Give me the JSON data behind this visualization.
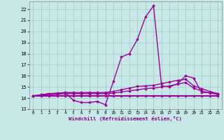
{
  "xlabel": "Windchill (Refroidissement éolien,°C)",
  "bg_color": "#c8e8e8",
  "grid_color": "#a0c8c8",
  "line_color": "#990099",
  "xlim": [
    -0.5,
    23.5
  ],
  "ylim": [
    13.0,
    22.7
  ],
  "yticks": [
    13,
    14,
    15,
    16,
    17,
    18,
    19,
    20,
    21,
    22
  ],
  "xticks": [
    0,
    1,
    2,
    3,
    4,
    5,
    6,
    7,
    8,
    9,
    10,
    11,
    12,
    13,
    14,
    15,
    16,
    17,
    18,
    19,
    20,
    21,
    22,
    23
  ],
  "xtick_labels": [
    "0",
    "1",
    "2",
    "3",
    "4",
    "5",
    "6",
    "7",
    "8",
    "9",
    "10",
    "11",
    "12",
    "13",
    "14",
    "15",
    "16",
    "17",
    "18",
    "19",
    "20",
    "21",
    "22",
    "23"
  ],
  "series": [
    {
      "x": [
        0,
        1,
        2,
        3,
        4,
        5,
        6,
        7,
        8,
        9,
        10,
        11,
        12,
        13,
        14,
        15,
        16,
        17,
        18,
        19,
        20,
        21,
        22,
        23
      ],
      "y": [
        14.2,
        14.3,
        14.4,
        14.4,
        14.5,
        13.8,
        13.6,
        13.6,
        13.7,
        13.4,
        15.5,
        17.7,
        18.0,
        19.3,
        21.3,
        22.3,
        15.1,
        15.0,
        15.3,
        16.0,
        15.8,
        14.5,
        14.5,
        14.4
      ]
    },
    {
      "x": [
        0,
        1,
        2,
        3,
        4,
        5,
        6,
        7,
        8,
        9,
        10,
        11,
        12,
        13,
        14,
        15,
        16,
        17,
        18,
        19,
        20,
        21,
        22,
        23
      ],
      "y": [
        14.2,
        14.3,
        14.4,
        14.45,
        14.5,
        14.5,
        14.5,
        14.5,
        14.5,
        14.5,
        14.6,
        14.75,
        14.9,
        15.05,
        15.1,
        15.15,
        15.3,
        15.45,
        15.6,
        15.7,
        15.1,
        14.85,
        14.6,
        14.4
      ]
    },
    {
      "x": [
        0,
        1,
        2,
        3,
        4,
        5,
        6,
        7,
        8,
        9,
        10,
        11,
        12,
        13,
        14,
        15,
        16,
        17,
        18,
        19,
        20,
        21,
        22,
        23
      ],
      "y": [
        14.2,
        14.25,
        14.3,
        14.35,
        14.4,
        14.4,
        14.4,
        14.4,
        14.4,
        14.4,
        14.45,
        14.55,
        14.65,
        14.75,
        14.85,
        14.9,
        15.0,
        15.1,
        15.25,
        15.4,
        14.9,
        14.65,
        14.45,
        14.35
      ]
    },
    {
      "x": [
        0,
        1,
        2,
        3,
        4,
        5,
        6,
        7,
        8,
        9,
        10,
        11,
        12,
        13,
        14,
        15,
        16,
        17,
        18,
        19,
        20,
        21,
        22,
        23
      ],
      "y": [
        14.2,
        14.2,
        14.2,
        14.2,
        14.2,
        14.2,
        14.2,
        14.2,
        14.2,
        14.2,
        14.2,
        14.2,
        14.2,
        14.2,
        14.2,
        14.2,
        14.2,
        14.2,
        14.2,
        14.2,
        14.2,
        14.2,
        14.2,
        14.2
      ]
    }
  ]
}
